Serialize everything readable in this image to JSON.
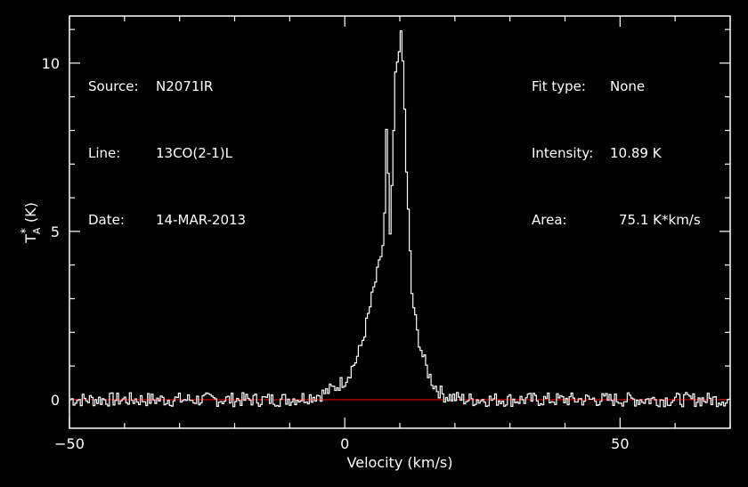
{
  "header_left": {
    "source_label": "Source:",
    "source_value": "N2071IR",
    "line_label": "Line:",
    "line_value": "13CO(2-1)L",
    "date_label": "Date:",
    "date_value": "14-MAR-2013"
  },
  "header_right": {
    "fit_label": "Fit type:",
    "fit_value": "None",
    "intensity_label": "Intensity:",
    "intensity_value": "10.89 K",
    "area_label": "Area:",
    "area_value": "75.1 K*km/s"
  },
  "colors": {
    "background": "#000000",
    "trace": "#ffffff",
    "baseline": "#cc0000",
    "axes": "#ffffff"
  },
  "chart_data": {
    "type": "line",
    "title": "",
    "xlabel": "Velocity (km/s)",
    "ylabel_main": "T",
    "ylabel_sup": "*",
    "ylabel_sub": "A",
    "ylabel_unit": "(K)",
    "xlim": [
      -50,
      70
    ],
    "ylim": [
      -0.85,
      11.4
    ],
    "xticks": [
      -50,
      0,
      50
    ],
    "xtick_labels": [
      "−50",
      "0",
      "50"
    ],
    "yticks": [
      0,
      5,
      10
    ],
    "ytick_labels": [
      "0",
      "5",
      "10"
    ],
    "baseline": 0,
    "series": [
      {
        "values_x": [
          -50,
          -12,
          -10,
          -8,
          -6,
          -4,
          -2,
          0,
          2,
          3,
          4,
          5,
          6,
          7,
          7.5,
          8,
          8.5,
          9,
          9.5,
          10,
          10.5,
          11,
          12,
          13,
          14,
          15,
          16,
          17,
          18,
          20,
          22,
          30,
          70
        ],
        "values_y": [
          0,
          0,
          0.02,
          0.05,
          0.1,
          0.18,
          0.35,
          0.6,
          1.2,
          1.7,
          2.4,
          3.2,
          3.9,
          4.8,
          8.5,
          4.6,
          6.5,
          9.5,
          10.2,
          10.89,
          9.8,
          7.0,
          3.2,
          2.0,
          1.3,
          0.8,
          0.45,
          0.25,
          0.12,
          0.05,
          0,
          0,
          0
        ]
      }
    ]
  }
}
